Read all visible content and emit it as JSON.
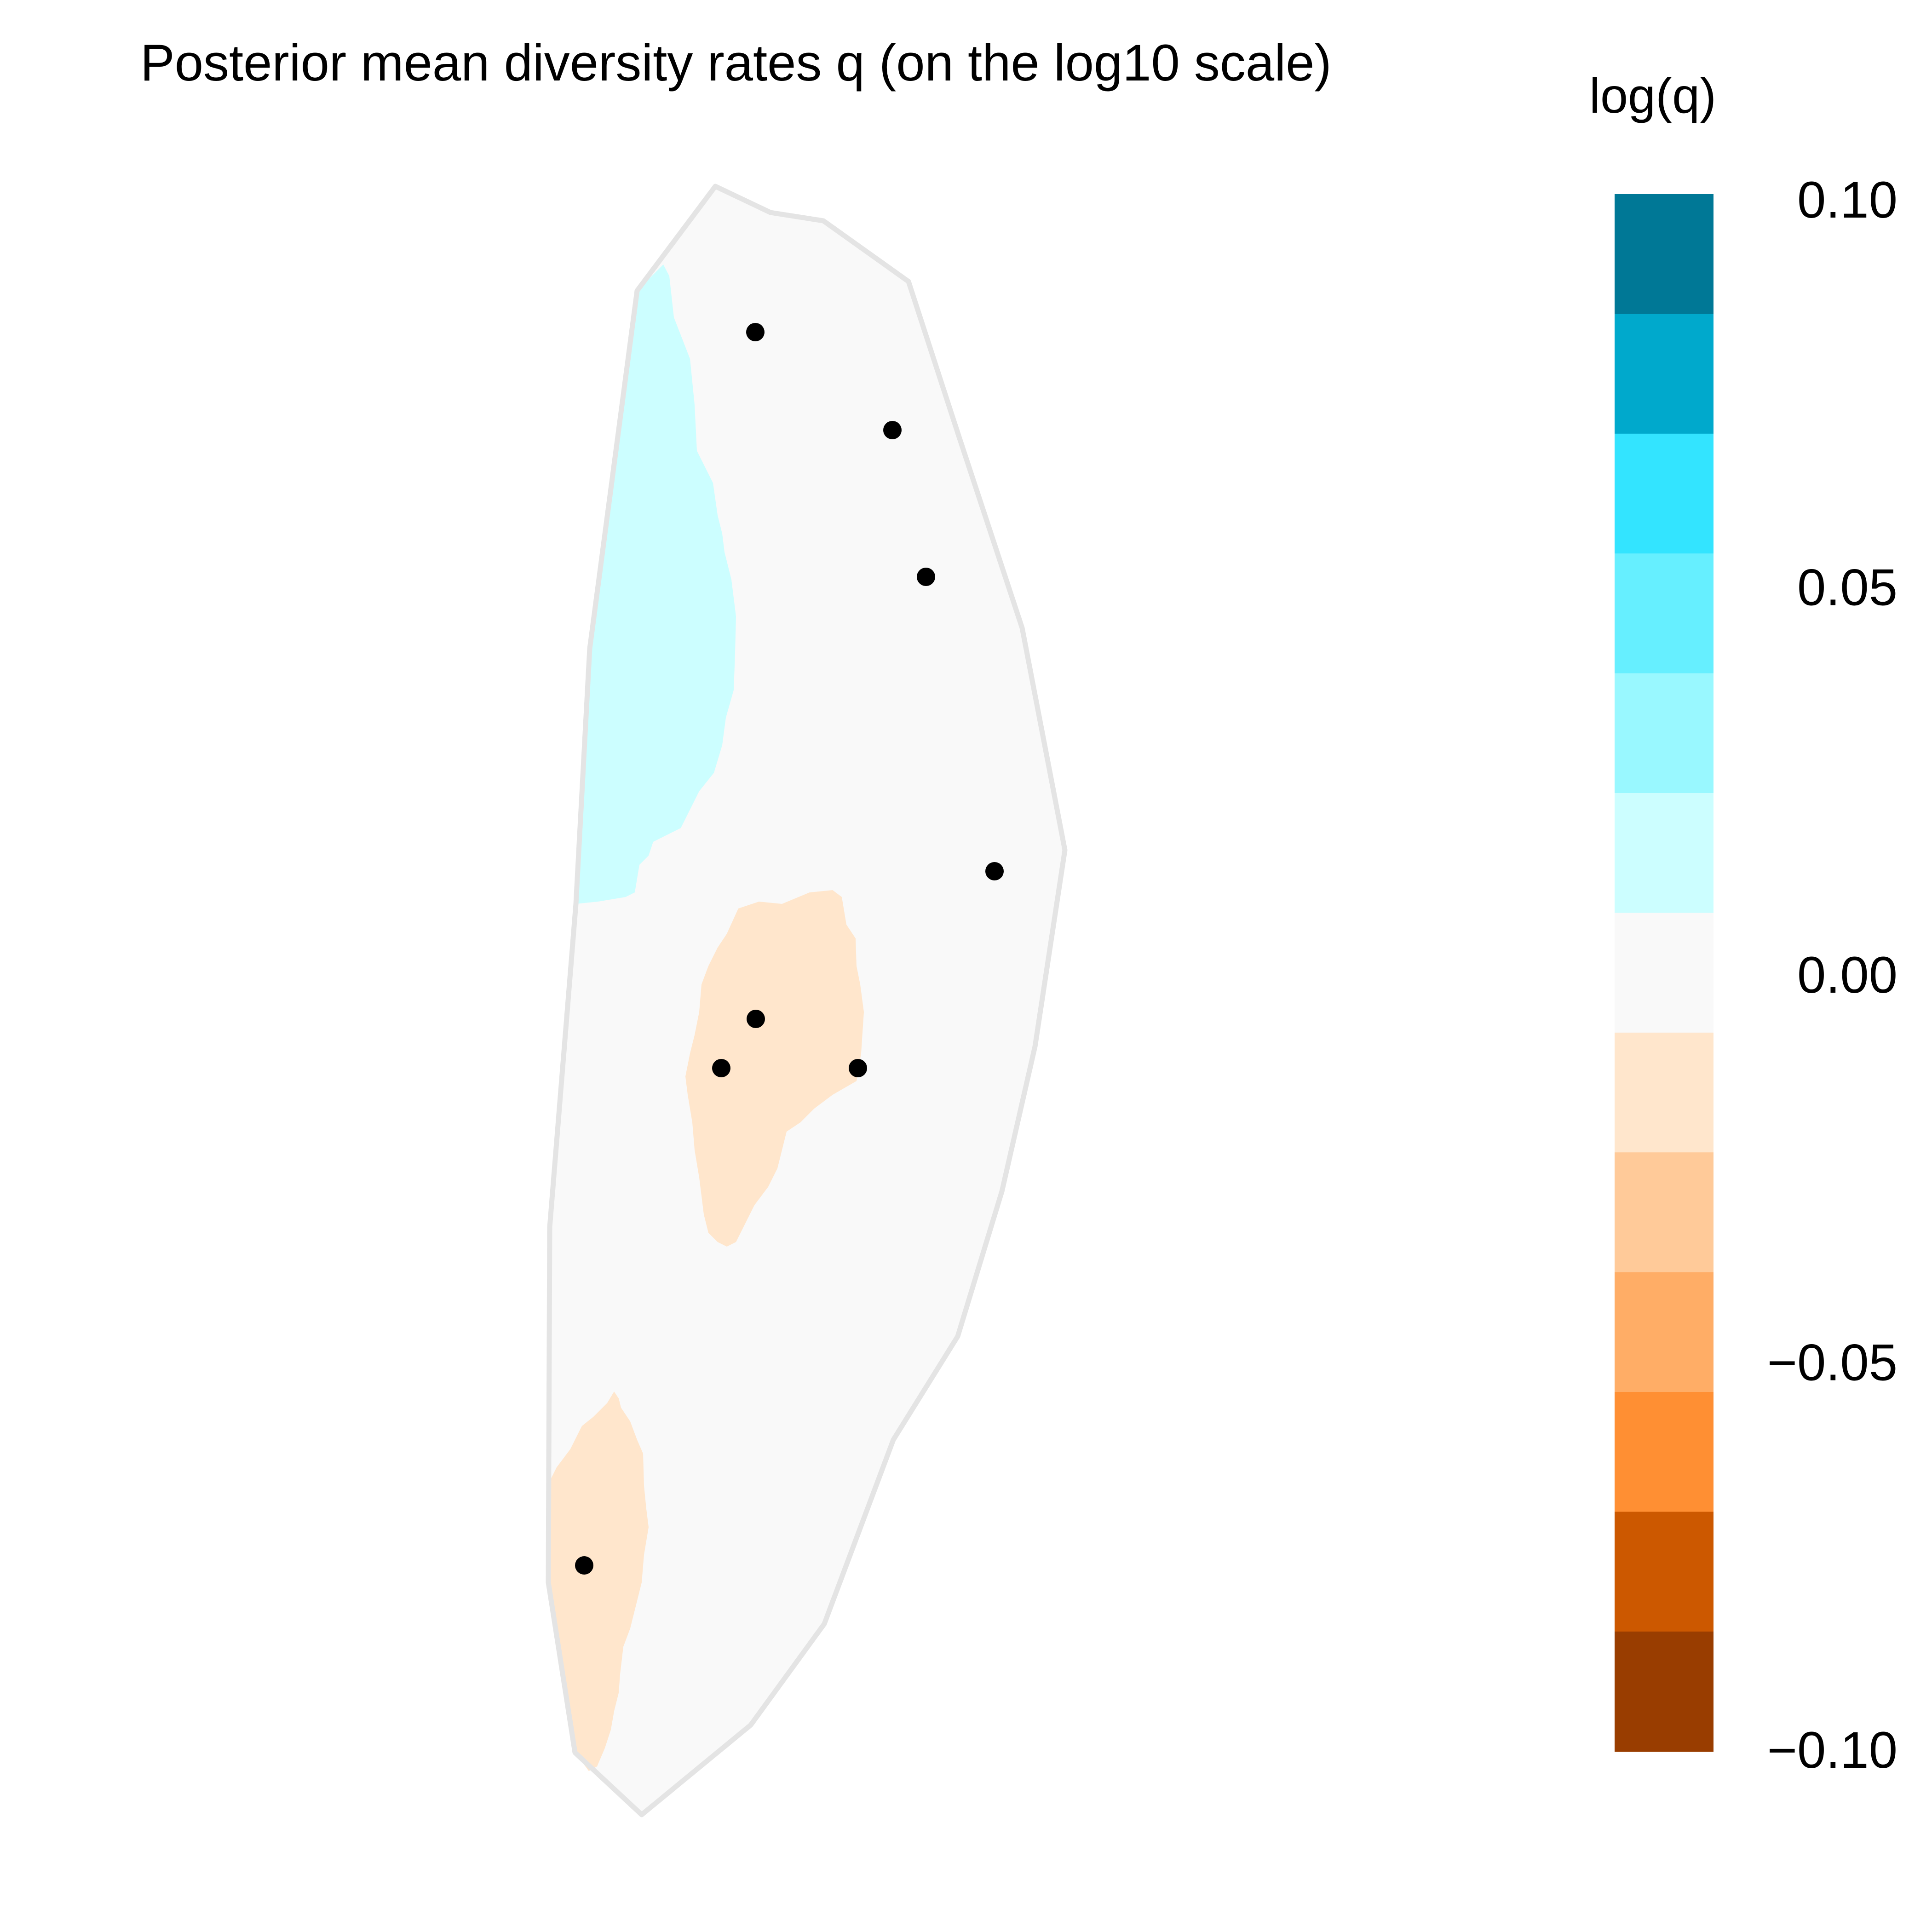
{
  "chart_data": {
    "type": "heatmap",
    "title": "Posterior mean diversity rates q (on the log10 scale)",
    "legend": {
      "title": "log(q)",
      "placement": "right",
      "range": [
        -0.1,
        0.1
      ],
      "ticks": [
        {
          "value": 0.1,
          "label": "0.10"
        },
        {
          "value": 0.05,
          "label": "0.05"
        },
        {
          "value": 0.0,
          "label": "0.00"
        },
        {
          "value": -0.05,
          "label": "−0.05"
        },
        {
          "value": -0.1,
          "label": "−0.10"
        }
      ],
      "bins": [
        {
          "from": 0.0833,
          "to": 0.1,
          "color": "#007896"
        },
        {
          "from": 0.0667,
          "to": 0.0833,
          "color": "#00A9CC"
        },
        {
          "from": 0.05,
          "to": 0.0667,
          "color": "#33E4FF"
        },
        {
          "from": 0.0333,
          "to": 0.05,
          "color": "#66EFFF"
        },
        {
          "from": 0.0167,
          "to": 0.0333,
          "color": "#99F8FF"
        },
        {
          "from": 0.0,
          "to": 0.0167,
          "color": "#CCFEFF"
        },
        {
          "from": -0.0167,
          "to": 0.0,
          "color": "#F9F9F9"
        },
        {
          "from": -0.0333,
          "to": -0.0167,
          "color": "#FFE6CC"
        },
        {
          "from": -0.05,
          "to": -0.0333,
          "color": "#FFCA99"
        },
        {
          "from": -0.0667,
          "to": -0.05,
          "color": "#FFAD66"
        },
        {
          "from": -0.0833,
          "to": -0.0667,
          "color": "#FF8F33"
        },
        {
          "from": -0.1,
          "to": -0.0833,
          "color": "#CC5800"
        },
        {
          "from": -0.1167,
          "to": -0.1,
          "color": "#993D00"
        }
      ]
    },
    "regions": [
      {
        "name": "habitat",
        "bin_color": "#F9F9F9",
        "description_level": 0.0
      },
      {
        "name": "north-west-high-diversity",
        "bin_color": "#CCFEFF",
        "description_level": 0.01
      },
      {
        "name": "central-low-diversity",
        "bin_color": "#FFE6CC",
        "description_level": -0.02
      },
      {
        "name": "south-low-diversity",
        "bin_color": "#FFE6CC",
        "description_level": -0.02
      }
    ],
    "sample_sites": 8,
    "boundary_color": "#E4E4E4",
    "point_color": "#000000",
    "grid": false,
    "axes": false
  }
}
